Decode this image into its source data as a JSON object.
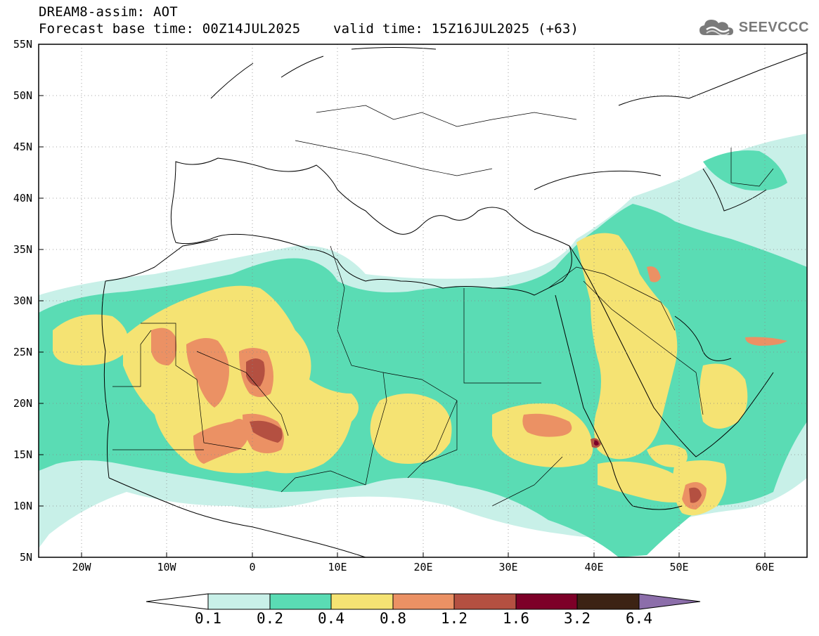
{
  "header": {
    "title_line1": "DREAM8-assim: AOT",
    "title_line2": "Forecast base time: 00Z14JUL2025    valid time: 15Z16JUL2025 (+63)"
  },
  "logo": {
    "text": "SEEVCCC",
    "icon": "cloud-icon"
  },
  "map": {
    "lat_ticks": [
      "55N",
      "50N",
      "45N",
      "40N",
      "35N",
      "30N",
      "25N",
      "20N",
      "15N",
      "10N",
      "5N"
    ],
    "lon_ticks": [
      "20W",
      "10W",
      "0",
      "10E",
      "20E",
      "30E",
      "40E",
      "50E",
      "60E"
    ],
    "lon_range": [
      -25,
      65
    ],
    "lat_range": [
      5,
      55
    ]
  },
  "colorbar": {
    "levels": [
      "0.1",
      "0.2",
      "0.4",
      "0.8",
      "1.2",
      "1.6",
      "3.2",
      "6.4"
    ],
    "colors": [
      "#ffffff",
      "#c8f0e8",
      "#5adcb4",
      "#f5e373",
      "#eb9164",
      "#b45041",
      "#7d0028",
      "#3c2314",
      "#8c6eaa"
    ]
  }
}
